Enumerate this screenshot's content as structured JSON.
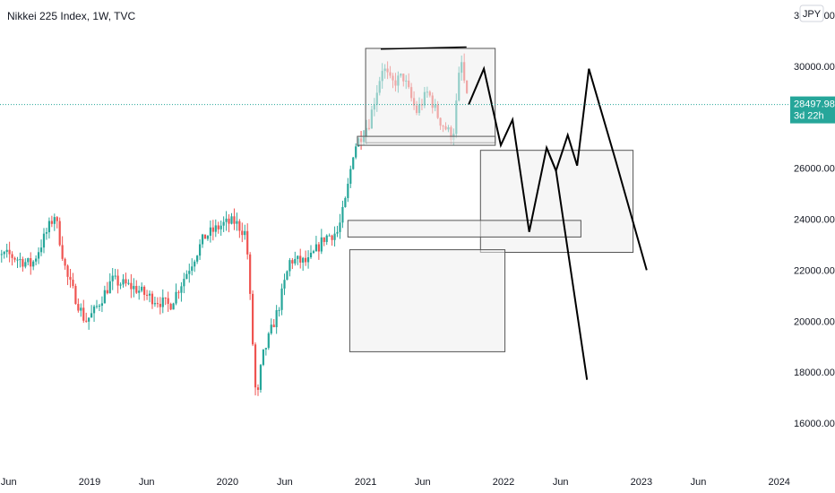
{
  "chart_data": {
    "type": "candlestick",
    "title": "Nikkei 225 Index, 1W, TVC",
    "currency": "JPY",
    "y_ticks": [
      "16000.00",
      "18000.00",
      "20000.00",
      "22000.00",
      "24000.00",
      "26000.00",
      "28000.00",
      "30000.00",
      "32000.00"
    ],
    "x_ticks": [
      "Jun",
      "2019",
      "Jun",
      "2020",
      "Jun",
      "2021",
      "Jun",
      "2022",
      "Jun",
      "2023",
      "Jun",
      "2024"
    ],
    "ylim": [
      14200,
      32600
    ],
    "xlim": [
      "2018-04",
      "2024-04"
    ],
    "grid": false,
    "last_price": {
      "value": 28497.98,
      "label": "28497.98",
      "countdown": "3d 22h"
    },
    "colors": {
      "up": "#26a69a",
      "down": "#ef5350",
      "price_line": "#26a69a",
      "drawing": "#000000",
      "box_fill": "#efefef",
      "box_stroke": "#555555"
    },
    "candles_weekly": [
      {
        "segment": "2018-04 to 2018-12",
        "range": [
          21500,
          24400
        ],
        "last_close": 20000
      },
      {
        "segment": "2019-01 to 2019-12",
        "range": [
          19200,
          24100
        ],
        "last_close": 23700
      },
      {
        "segment": "2020-01 to 2020-03",
        "range": [
          16400,
          24100
        ],
        "low": 16400
      },
      {
        "segment": "2020-03 to 2020-10",
        "range": [
          16400,
          23500
        ],
        "last_close": 23300
      },
      {
        "segment": "2020-11 to 2021-01",
        "range": [
          23300,
          28900
        ],
        "last_close": 28600
      },
      {
        "segment": "2021-02 to 2021-09",
        "range": [
          27000,
          30700
        ],
        "high": 30700,
        "last_close": 28498
      }
    ],
    "annotations": {
      "rectangles": [
        {
          "x": [
            "2021-01-01",
            "2021-12-10"
          ],
          "y": [
            27000,
            30700
          ]
        },
        {
          "x": [
            "2020-12-10",
            "2021-12-10"
          ],
          "y": [
            26900,
            27250
          ]
        },
        {
          "x": [
            "2021-11-01",
            "2022-12-10"
          ],
          "y": [
            22700,
            26700
          ]
        },
        {
          "x": [
            "2020-11-15",
            "2022-07-25"
          ],
          "y": [
            23300,
            23950
          ]
        },
        {
          "x": [
            "2020-11-20",
            "2022-01-05"
          ],
          "y": [
            18800,
            22800
          ]
        }
      ],
      "trend_lines": [
        {
          "x": [
            "2021-02-10",
            "2021-09-25"
          ],
          "y": [
            30670,
            30750
          ]
        }
      ],
      "projection_paths": [
        [
          [
            "2021-10-01",
            28500
          ],
          [
            "2021-11-10",
            29900
          ],
          [
            "2021-12-25",
            26900
          ],
          [
            "2022-01-25",
            27900
          ],
          [
            "2022-03-10",
            23500
          ],
          [
            "2022-04-25",
            26800
          ],
          [
            "2022-05-20",
            25900
          ],
          [
            "2022-08-10",
            17700
          ]
        ],
        [
          [
            "2022-04-25",
            26800
          ],
          [
            "2022-05-20",
            25900
          ],
          [
            "2022-06-20",
            27300
          ],
          [
            "2022-07-15",
            26100
          ],
          [
            "2022-08-15",
            29900
          ],
          [
            "2022-10-25",
            26300
          ],
          [
            "2023-01-15",
            22000
          ]
        ]
      ]
    }
  }
}
